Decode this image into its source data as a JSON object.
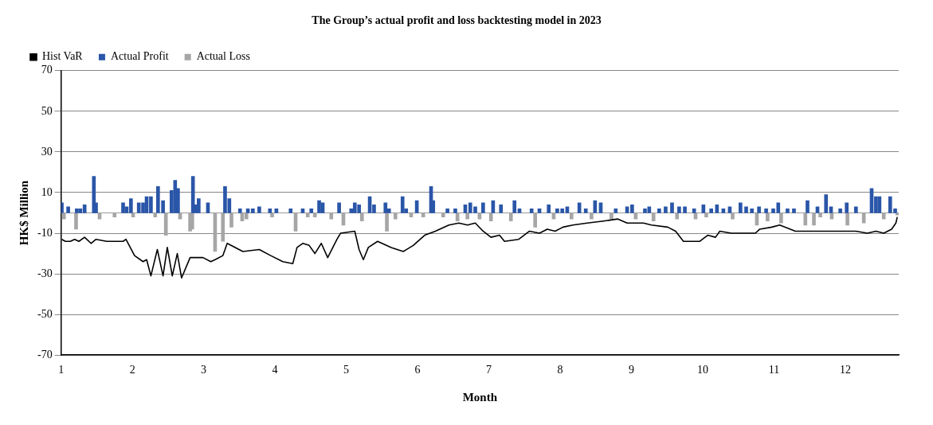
{
  "chart_data": {
    "type": "bar",
    "title": "The Group’s actual profit and loss backtesting model in 2023",
    "xlabel": "Month",
    "ylabel": "HK$ Million",
    "xlim": [
      1,
      12.75
    ],
    "xticks": [
      1,
      2,
      3,
      4,
      5,
      6,
      7,
      8,
      9,
      10,
      11,
      12
    ],
    "ylim": [
      -70,
      70
    ],
    "yticks": [
      -70,
      -50,
      -30,
      -10,
      10,
      30,
      50,
      70
    ],
    "grid": "y",
    "legend": "top left",
    "stacked": true,
    "ref_lines": [
      {
        "axis": "y",
        "value": 0,
        "color": "#999999"
      }
    ],
    "series": [
      {
        "name": "Hist VaR",
        "type": "line",
        "color": "#000000",
        "marker": "none",
        "line_style": "solid",
        "x": [
          1.01,
          1.06,
          1.13,
          1.19,
          1.25,
          1.33,
          1.42,
          1.49,
          1.64,
          1.87,
          1.91,
          2.03,
          2.15,
          2.2,
          2.26,
          2.35,
          2.43,
          2.49,
          2.56,
          2.63,
          2.69,
          2.81,
          2.99,
          3.1,
          3.16,
          3.27,
          3.33,
          3.55,
          3.78,
          3.94,
          4.11,
          4.25,
          4.31,
          4.39,
          4.48,
          4.56,
          4.65,
          4.74,
          4.87,
          4.92,
          5.12,
          5.18,
          5.24,
          5.31,
          5.44,
          5.63,
          5.8,
          5.94,
          6.1,
          6.25,
          6.44,
          6.58,
          6.7,
          6.81,
          6.92,
          7.03,
          7.15,
          7.22,
          7.42,
          7.57,
          7.71,
          7.82,
          7.93,
          8.04,
          8.18,
          8.38,
          8.61,
          8.81,
          8.94,
          9.17,
          9.28,
          9.51,
          9.62,
          9.73,
          9.96,
          10.07,
          10.18,
          10.24,
          10.4,
          10.57,
          10.74,
          10.8,
          10.97,
          11.08,
          11.3,
          11.53,
          11.75,
          11.98,
          12.15,
          12.31,
          12.43,
          12.54,
          12.65,
          12.71,
          12.73
        ],
        "values": [
          -13,
          -14,
          -14,
          -13,
          -14,
          -12,
          -15,
          -13,
          -14,
          -14,
          -13,
          -21,
          -24,
          -23,
          -31,
          -18,
          -31,
          -17,
          -31,
          -20,
          -32,
          -22,
          -22,
          -24,
          -23,
          -21,
          -15,
          -19,
          -18,
          -21,
          -24,
          -25,
          -17,
          -15,
          -16,
          -20,
          -15,
          -22,
          -13,
          -10,
          -9,
          -18,
          -23,
          -17,
          -14,
          -17,
          -19,
          -16,
          -11,
          -9,
          -6,
          -5,
          -6,
          -5,
          -9,
          -12,
          -11,
          -14,
          -13,
          -9,
          -10,
          -8,
          -9,
          -7,
          -6,
          -5,
          -4,
          -3,
          -5,
          -5,
          -6,
          -7,
          -9,
          -14,
          -14,
          -11,
          -12,
          -9,
          -10,
          -10,
          -10,
          -8,
          -7,
          -6,
          -9,
          -9,
          -9,
          -9,
          -9,
          -10,
          -9,
          -10,
          -8,
          -5,
          -2
        ]
      },
      {
        "name": "Actual Profit",
        "color": "#2a56a8",
        "x": [
          1.01,
          1.1,
          1.22,
          1.27,
          1.33,
          1.46,
          1.49,
          1.87,
          1.92,
          1.98,
          2.09,
          2.15,
          2.2,
          2.26,
          2.36,
          2.43,
          2.55,
          2.6,
          2.64,
          2.85,
          2.89,
          2.93,
          3.06,
          3.3,
          3.36,
          3.51,
          3.62,
          3.69,
          3.78,
          3.93,
          4.02,
          4.22,
          4.39,
          4.51,
          4.62,
          4.67,
          4.9,
          5.07,
          5.12,
          5.18,
          5.33,
          5.39,
          5.55,
          5.6,
          5.79,
          5.84,
          5.99,
          6.19,
          6.22,
          6.42,
          6.53,
          6.67,
          6.74,
          6.81,
          6.92,
          7.06,
          7.17,
          7.36,
          7.43,
          7.6,
          7.71,
          7.84,
          7.96,
          8.03,
          8.1,
          8.27,
          8.36,
          8.49,
          8.57,
          8.78,
          8.94,
          9.01,
          9.19,
          9.25,
          9.39,
          9.48,
          9.57,
          9.67,
          9.75,
          9.88,
          10.01,
          10.12,
          10.2,
          10.29,
          10.38,
          10.53,
          10.61,
          10.69,
          10.79,
          10.89,
          10.99,
          11.06,
          11.19,
          11.28,
          11.47,
          11.61,
          11.73,
          11.8,
          11.93,
          12.02,
          12.15,
          12.37,
          12.43,
          12.48,
          12.63,
          12.7
        ],
        "values": [
          5,
          3,
          2,
          2,
          4,
          18,
          5,
          5,
          3,
          7,
          5,
          5,
          8,
          8,
          13,
          6,
          11,
          16,
          12,
          18,
          4,
          7,
          5,
          13,
          7,
          2,
          2,
          2,
          3,
          2,
          2,
          2,
          2,
          2,
          6,
          5,
          5,
          2,
          5,
          4,
          8,
          4,
          5,
          2,
          8,
          2,
          6,
          13,
          6,
          2,
          2,
          4,
          5,
          3,
          5,
          6,
          4,
          6,
          2,
          2,
          2,
          4,
          2,
          2,
          3,
          5,
          2,
          6,
          5,
          2,
          3,
          4,
          2,
          3,
          2,
          3,
          5,
          3,
          3,
          2,
          4,
          2,
          4,
          2,
          3,
          5,
          3,
          2,
          3,
          2,
          2,
          5,
          2,
          2,
          6,
          3,
          9,
          3,
          2,
          5,
          3,
          12,
          8,
          8,
          8,
          2
        ]
      },
      {
        "name": "Actual Loss",
        "color": "#a6a6a6",
        "x": [
          1.04,
          1.21,
          1.54,
          1.75,
          2.01,
          2.32,
          2.47,
          2.67,
          2.81,
          2.84,
          3.16,
          3.27,
          3.39,
          3.54,
          3.6,
          3.96,
          4.29,
          4.46,
          4.56,
          4.79,
          4.96,
          5.22,
          5.57,
          5.69,
          5.91,
          6.08,
          6.36,
          6.56,
          6.7,
          6.87,
          7.03,
          7.31,
          7.65,
          7.91,
          8.16,
          8.44,
          8.72,
          9.06,
          9.31,
          9.64,
          9.9,
          10.05,
          10.42,
          10.76,
          10.91,
          11.1,
          11.44,
          11.56,
          11.65,
          11.81,
          12.03,
          12.26,
          12.54,
          12.73
        ],
        "values": [
          -3,
          -8,
          -3,
          -2,
          -2,
          -2,
          -11,
          -3,
          -9,
          -8,
          -19,
          -14,
          -7,
          -4,
          -3,
          -2,
          -9,
          -2,
          -2,
          -3,
          -6,
          -4,
          -9,
          -3,
          -2,
          -2,
          -2,
          -4,
          -3,
          -3,
          -4,
          -4,
          -7,
          -3,
          -3,
          -3,
          -3,
          -3,
          -4,
          -3,
          -3,
          -2,
          -3,
          -6,
          -4,
          -5,
          -6,
          -6,
          -2,
          -3,
          -6,
          -5,
          -3,
          -1
        ]
      }
    ]
  }
}
